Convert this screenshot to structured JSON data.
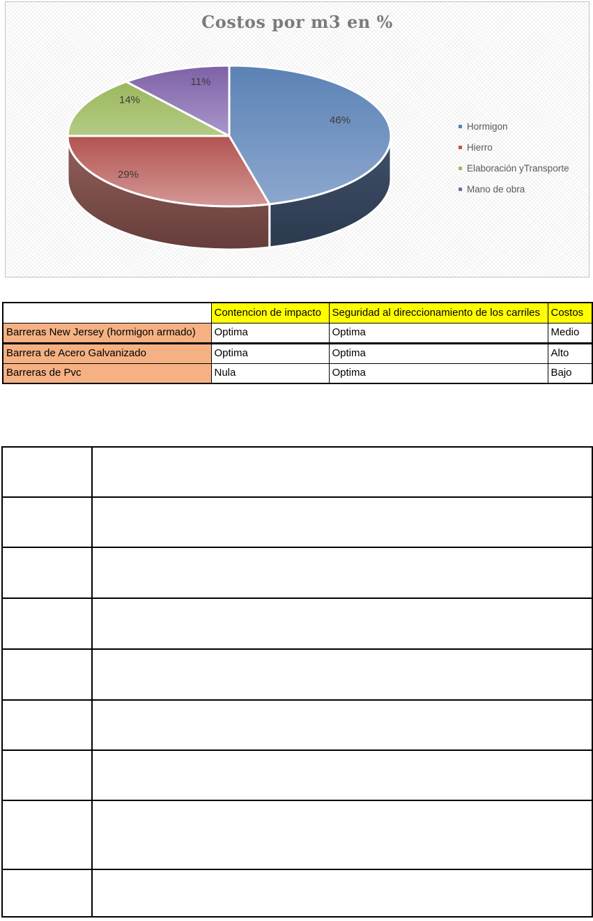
{
  "page": {
    "background": "#ffffff"
  },
  "chart_data": {
    "type": "pie",
    "style": "3d",
    "title": "Costos por m3 en %",
    "labels": [
      "Hormigon",
      "Hierro",
      "Elaboración yTransporte",
      "Mano de obra"
    ],
    "values": [
      46,
      29,
      14,
      11
    ],
    "value_labels": [
      "46%",
      "29%",
      "14%",
      "11%"
    ],
    "colors": [
      "#4F81BD",
      "#C0504D",
      "#9BBB59",
      "#8064A2"
    ],
    "legend_position": "right",
    "title_color": "#7B7B7B",
    "value_label_color": "#3C3C3C",
    "legend_text_color": "#595959"
  },
  "comparison_table": {
    "column_headers": [
      "",
      "Contencion de impacto",
      "Seguridad al direccionamiento de los carriles",
      "Costos"
    ],
    "rows": [
      {
        "label": "Barreras New Jersey (hormigon armado)",
        "values": [
          "Optima",
          "Optima",
          "Medio"
        ]
      },
      {
        "label": "Barrera de Acero Galvanizado",
        "values": [
          "Optima",
          "Optima",
          "Alto"
        ]
      },
      {
        "label": "Barreras de Pvc",
        "values": [
          "Nula",
          "Optima",
          "Bajo"
        ]
      }
    ],
    "header_bg": "#FFFF00",
    "row_label_bg": "#F5B183",
    "border_color": "#000000"
  },
  "empty_table": {
    "row_count": 9,
    "column_count": 2
  }
}
